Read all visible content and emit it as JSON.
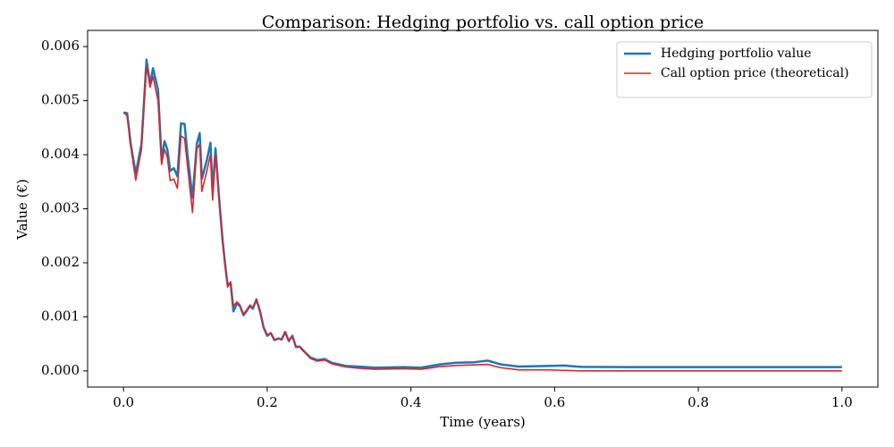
{
  "chart_data": {
    "type": "line",
    "title": "Comparison: Hedging portfolio vs. call option price",
    "x_label": "Time (years)",
    "y_label": "Value (€)",
    "x": [
      0,
      0.005,
      0.01,
      0.017,
      0.025,
      0.032,
      0.037,
      0.041,
      0.048,
      0.053,
      0.057,
      0.061,
      0.065,
      0.07,
      0.075,
      0.08,
      0.085,
      0.089,
      0.096,
      0.102,
      0.106,
      0.109,
      0.116,
      0.121,
      0.124,
      0.128,
      0.133,
      0.138,
      0.142,
      0.145,
      0.149,
      0.153,
      0.158,
      0.162,
      0.167,
      0.171,
      0.176,
      0.18,
      0.185,
      0.19,
      0.195,
      0.2,
      0.205,
      0.21,
      0.216,
      0.22,
      0.225,
      0.23,
      0.235,
      0.24,
      0.245,
      0.25,
      0.26,
      0.27,
      0.28,
      0.29,
      0.3,
      0.31,
      0.327,
      0.35,
      0.39,
      0.414,
      0.44,
      0.463,
      0.488,
      0.507,
      0.525,
      0.55,
      0.588,
      0.612,
      0.637,
      0.7,
      1.0
    ],
    "series": [
      {
        "name": "Hedging portfolio value",
        "color": "#1f77b4",
        "width": 2.5,
        "values": [
          0.00478,
          0.00477,
          0.0042,
          0.00365,
          0.0042,
          0.00576,
          0.0053,
          0.0056,
          0.0052,
          0.0039,
          0.00425,
          0.0041,
          0.0037,
          0.00375,
          0.0036,
          0.00458,
          0.00457,
          0.004,
          0.0032,
          0.0042,
          0.0044,
          0.00355,
          0.0039,
          0.00422,
          0.0033,
          0.00412,
          0.0032,
          0.0024,
          0.0019,
          0.00158,
          0.00163,
          0.0011,
          0.00125,
          0.0012,
          0.00103,
          0.0011,
          0.0012,
          0.00115,
          0.00132,
          0.0011,
          0.0008,
          0.00065,
          0.0007,
          0.00057,
          0.0006,
          0.00058,
          0.00072,
          0.00055,
          0.00065,
          0.00044,
          0.00045,
          0.00038,
          0.00025,
          0.0002,
          0.00022,
          0.00015,
          0.00012,
          9e-05,
          8e-05,
          6e-05,
          7e-05,
          6e-05,
          0.00012,
          0.00015,
          0.00016,
          0.00019,
          0.00012,
          8e-05,
          9e-05,
          0.0001,
          7.5e-05,
          7e-05,
          7e-05
        ]
      },
      {
        "name": "Call option price (theoretical)",
        "color": "#d62728",
        "width": 1.6,
        "values": [
          0.00478,
          0.00472,
          0.00415,
          0.00353,
          0.0041,
          0.00565,
          0.00525,
          0.00545,
          0.005,
          0.00382,
          0.0041,
          0.00395,
          0.00352,
          0.00355,
          0.00338,
          0.00435,
          0.0043,
          0.0038,
          0.00293,
          0.0041,
          0.0042,
          0.00332,
          0.0037,
          0.004,
          0.00316,
          0.004,
          0.00315,
          0.00235,
          0.00188,
          0.00155,
          0.00165,
          0.0012,
          0.00128,
          0.00122,
          0.00105,
          0.00112,
          0.00122,
          0.00117,
          0.00133,
          0.00112,
          0.00082,
          0.00067,
          0.0007,
          0.00058,
          0.0006,
          0.00058,
          0.00072,
          0.00056,
          0.00065,
          0.00045,
          0.00045,
          0.00037,
          0.00023,
          0.00018,
          0.0002,
          0.00013,
          0.0001,
          7e-05,
          5e-05,
          3e-05,
          4e-05,
          3e-05,
          8e-05,
          0.0001,
          0.00011,
          0.00012,
          6e-05,
          2e-05,
          2e-05,
          1e-05,
          0,
          0,
          0
        ]
      }
    ],
    "xlim": [
      -0.05,
      1.05
    ],
    "ylim": [
      -0.0003,
      0.0063
    ],
    "xticks": [
      {
        "value": 0,
        "label": "0.0"
      },
      0.2,
      0.4,
      0.6,
      0.8,
      {
        "value": 1,
        "label": "1.0"
      }
    ],
    "yticks": [
      {
        "value": 0,
        "label": "0.000"
      },
      {
        "value": 0.001,
        "label": "0.001"
      },
      {
        "value": 0.002,
        "label": "0.002"
      },
      {
        "value": 0.003,
        "label": "0.003"
      },
      {
        "value": 0.004,
        "label": "0.004"
      },
      {
        "value": 0.005,
        "label": "0.005"
      },
      {
        "value": 0.006,
        "label": "0.006"
      }
    ],
    "legend": "upper right",
    "grid": false
  }
}
